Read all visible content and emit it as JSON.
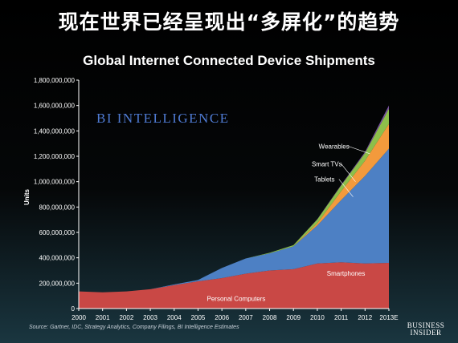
{
  "headline": "现在世界已经呈现出“多屏化”的趋势",
  "source_note": "Source: Gartner, IDC, Strategy Analytics, Company Filings, BI Intelligence Estimates",
  "logo": {
    "line1": "BUSINESS",
    "line2": "INSIDER"
  },
  "watermark": "BI INTELLIGENCE",
  "colors": {
    "personal_computers": "#c94845",
    "smartphones": "#4d80c4",
    "tablets": "#f39a3c",
    "smart_tvs": "#8dbf4a",
    "wearables": "#7a52a1",
    "watermark": "#4f7bd3"
  },
  "chart_data": {
    "type": "area",
    "stacked": true,
    "title": "Global Internet Connected Device Shipments",
    "xlabel": "",
    "ylabel": "Units",
    "ylim": [
      0,
      1800000000
    ],
    "yticks": [
      0,
      200000000,
      400000000,
      600000000,
      800000000,
      1000000000,
      1200000000,
      1400000000,
      1600000000,
      1800000000
    ],
    "ytick_labels": [
      "0",
      "200,000,000",
      "400,000,000",
      "600,000,000",
      "800,000,000",
      "1,000,000,000",
      "1,200,000,000",
      "1,400,000,000",
      "1,600,000,000",
      "1,800,000,000"
    ],
    "categories": [
      "2000",
      "2001",
      "2002",
      "2003",
      "2004",
      "2005",
      "2006",
      "2007",
      "2008",
      "2009",
      "2010",
      "2011",
      "2012",
      "2013E"
    ],
    "grid": false,
    "legend": "inline labels",
    "series": [
      {
        "name": "Personal Computers",
        "key": "personal_computers",
        "values": [
          135000000,
          128000000,
          135000000,
          152000000,
          185000000,
          215000000,
          240000000,
          275000000,
          300000000,
          310000000,
          355000000,
          365000000,
          355000000,
          360000000
        ]
      },
      {
        "name": "Smartphones",
        "key": "smartphones",
        "values": [
          0,
          0,
          0,
          0,
          5000000,
          10000000,
          80000000,
          120000000,
          135000000,
          180000000,
          300000000,
          490000000,
          690000000,
          900000000
        ]
      },
      {
        "name": "Tablets",
        "key": "tablets",
        "values": [
          0,
          0,
          0,
          0,
          0,
          0,
          0,
          0,
          0,
          0,
          18000000,
          70000000,
          120000000,
          195000000
        ]
      },
      {
        "name": "Smart TVs",
        "key": "smart_tvs",
        "values": [
          0,
          0,
          0,
          0,
          0,
          0,
          0,
          0,
          5000000,
          10000000,
          30000000,
          45000000,
          60000000,
          120000000
        ]
      },
      {
        "name": "Wearables",
        "key": "wearables",
        "values": [
          0,
          0,
          0,
          0,
          0,
          0,
          0,
          0,
          0,
          0,
          2000000,
          5000000,
          10000000,
          25000000
        ]
      }
    ]
  }
}
